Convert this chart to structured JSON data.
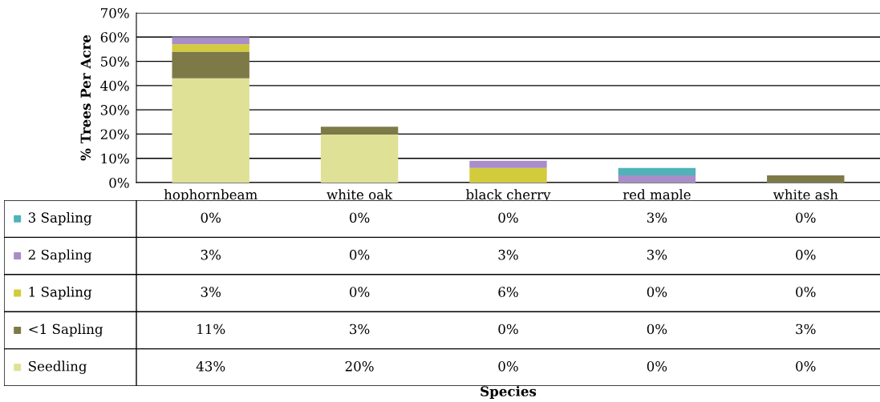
{
  "chart_data": {
    "type": "bar",
    "stacked": true,
    "annotations": [
      "Species"
    ],
    "ylabel": "% Trees Per Acre",
    "categories": [
      "hophornbeam",
      "white oak",
      "black cherry",
      "red maple",
      "white ash"
    ],
    "ylim": [
      0,
      70
    ],
    "yticks": [
      {
        "value": 0,
        "label": "0%"
      },
      {
        "value": 10,
        "label": "10%"
      },
      {
        "value": 20,
        "label": "20%"
      },
      {
        "value": 30,
        "label": "30%"
      },
      {
        "value": 40,
        "label": "40%"
      },
      {
        "value": 50,
        "label": "50%"
      },
      {
        "value": 60,
        "label": "60%"
      },
      {
        "value": 70,
        "label": "70%"
      }
    ],
    "grid": "y",
    "legend": "bottom left",
    "series": [
      {
        "name": "Seedling",
        "color": "#dfe196",
        "values": [
          43,
          20,
          0,
          0,
          0
        ],
        "value_labels": [
          "43%",
          "20%",
          "0%",
          "0%",
          "0%"
        ]
      },
      {
        "name": "<1 Sapling",
        "color": "#7d7a48",
        "values": [
          11,
          3,
          0,
          0,
          3
        ],
        "value_labels": [
          "11%",
          "3%",
          "0%",
          "0%",
          "3%"
        ]
      },
      {
        "name": "1 Sapling",
        "color": "#d2cb3c",
        "values": [
          3,
          0,
          6,
          0,
          0
        ],
        "value_labels": [
          "3%",
          "0%",
          "6%",
          "0%",
          "0%"
        ]
      },
      {
        "name": "2 Sapling",
        "color": "#a98dc8",
        "values": [
          3,
          0,
          3,
          3,
          0
        ],
        "value_labels": [
          "3%",
          "0%",
          "3%",
          "3%",
          "0%"
        ]
      },
      {
        "name": "3 Sapling",
        "color": "#4fb3b8",
        "values": [
          0,
          0,
          0,
          3,
          0
        ],
        "value_labels": [
          "0%",
          "0%",
          "0%",
          "3%",
          "0%"
        ]
      }
    ]
  }
}
